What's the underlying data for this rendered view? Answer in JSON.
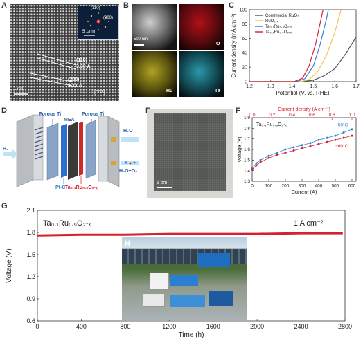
{
  "panels": {
    "A": {
      "letter": "A",
      "fft_labels": [
        "(110)",
        "(200)"
      ],
      "fft_scale": "5 1/nm",
      "d110_plane": "(110)",
      "d110_value": "3.30 Å",
      "d200_plane": "(200)",
      "d200_value": "2.32 Å",
      "scale_bar": "1 nm",
      "zone_axis": "[001]"
    },
    "B": {
      "letter": "B",
      "scale_bar": "500 nm",
      "element_labels": [
        "O",
        "Ru",
        "Ta"
      ],
      "colors": {
        "haadf": "#8a8a8a",
        "O": "#c8141c",
        "Ru": "#d8c92a",
        "Ta": "#38b7c9"
      }
    },
    "C": {
      "letter": "C"
    },
    "D": {
      "letter": "D",
      "labels": {
        "porous_ti_left": "Porous Ti",
        "porous_ti_right": "Porous Ti",
        "mea": "MEA",
        "h2": "H₂",
        "h2o_in": "H₂O",
        "h2o_out": "H₂O+O₂",
        "ptc": "Pt-C",
        "catalyst": "Ta₀.₁Ru₀.₉O₂-ₓ"
      }
    },
    "E": {
      "letter": "E",
      "scale_bar": "5 cm"
    },
    "F": {
      "letter": "F"
    },
    "G": {
      "letter": "G",
      "inset_letter": "H"
    }
  },
  "chart_data": [
    {
      "id": "C",
      "type": "line",
      "xlabel": "Potential (V, vs. RHE)",
      "ylabel": "Current density (mA cm⁻²)",
      "xlim": [
        1.2,
        1.7
      ],
      "ylim": [
        0,
        100
      ],
      "xticks": [
        1.2,
        1.3,
        1.4,
        1.5,
        1.6,
        1.7
      ],
      "yticks": [
        0,
        20,
        40,
        60,
        80,
        100
      ],
      "legend_position": "top-left",
      "series": [
        {
          "name": "Commercial RuO₂",
          "color": "#555555",
          "points": [
            [
              1.2,
              0
            ],
            [
              1.45,
              0
            ],
            [
              1.5,
              2
            ],
            [
              1.55,
              8
            ],
            [
              1.6,
              18
            ],
            [
              1.65,
              38
            ],
            [
              1.7,
              62
            ]
          ]
        },
        {
          "name": "RuO₂-ₓ",
          "color": "#f0c548",
          "points": [
            [
              1.2,
              0
            ],
            [
              1.44,
              0
            ],
            [
              1.48,
              3
            ],
            [
              1.52,
              14
            ],
            [
              1.56,
              36
            ],
            [
              1.6,
              68
            ],
            [
              1.62,
              90
            ],
            [
              1.63,
              100
            ]
          ]
        },
        {
          "name": "Ta₀.₂Ru₀.₈O₂-ₓ",
          "color": "#2b7fd6",
          "points": [
            [
              1.2,
              0
            ],
            [
              1.42,
              0
            ],
            [
              1.46,
              4
            ],
            [
              1.5,
              22
            ],
            [
              1.53,
              50
            ],
            [
              1.56,
              86
            ],
            [
              1.57,
              100
            ]
          ]
        },
        {
          "name": "Ta₀.₁Ru₀.₉O₂-ₓ",
          "color": "#d6202a",
          "points": [
            [
              1.2,
              0
            ],
            [
              1.41,
              0
            ],
            [
              1.45,
              5
            ],
            [
              1.48,
              22
            ],
            [
              1.51,
              52
            ],
            [
              1.535,
              86
            ],
            [
              1.545,
              100
            ]
          ]
        }
      ]
    },
    {
      "id": "F",
      "type": "scatter",
      "title": "Ta₀.₁Ru₀.₉O₂-ₓ",
      "xlabel": "Current (A)",
      "ylabel": "Voltage (V)",
      "x2label": "Current density (A cm⁻²)",
      "xlim": [
        0,
        625
      ],
      "ylim": [
        1.3,
        1.9
      ],
      "xticks": [
        0,
        100,
        200,
        300,
        400,
        500,
        600
      ],
      "yticks": [
        1.3,
        1.4,
        1.5,
        1.6,
        1.7,
        1.8,
        1.9
      ],
      "x2ticks": [
        0.0,
        0.2,
        0.4,
        0.6,
        0.8,
        1.0
      ],
      "series": [
        {
          "name": "~50°C",
          "color": "#2b7fd6",
          "points": [
            [
              0,
              1.42
            ],
            [
              25,
              1.47
            ],
            [
              50,
              1.5
            ],
            [
              100,
              1.54
            ],
            [
              150,
              1.57
            ],
            [
              200,
              1.6
            ],
            [
              250,
              1.62
            ],
            [
              300,
              1.64
            ],
            [
              350,
              1.66
            ],
            [
              400,
              1.69
            ],
            [
              450,
              1.71
            ],
            [
              500,
              1.73
            ],
            [
              550,
              1.76
            ],
            [
              600,
              1.79
            ]
          ]
        },
        {
          "name": "~60°C",
          "color": "#d6202a",
          "points": [
            [
              0,
              1.41
            ],
            [
              25,
              1.45
            ],
            [
              50,
              1.48
            ],
            [
              100,
              1.52
            ],
            [
              150,
              1.55
            ],
            [
              200,
              1.57
            ],
            [
              250,
              1.59
            ],
            [
              300,
              1.61
            ],
            [
              350,
              1.63
            ],
            [
              400,
              1.65
            ],
            [
              450,
              1.67
            ],
            [
              500,
              1.69
            ],
            [
              550,
              1.71
            ],
            [
              600,
              1.73
            ]
          ]
        }
      ]
    },
    {
      "id": "G",
      "type": "line",
      "title": "Ta₀.₁Ru₀.₉O₂-ₓ",
      "annotation": "1 A cm⁻²",
      "xlabel": "Time (h)",
      "ylabel": "Voltage (V)",
      "xlim": [
        0,
        2800
      ],
      "ylim": [
        0.6,
        2.1
      ],
      "xticks": [
        0,
        400,
        800,
        1200,
        1600,
        2000,
        2400,
        2800
      ],
      "yticks": [
        0.6,
        0.9,
        1.2,
        1.5,
        1.8,
        2.1
      ],
      "series": [
        {
          "name": "",
          "color": "#d6202a",
          "points": [
            [
              0,
              1.76
            ],
            [
              400,
              1.77
            ],
            [
              800,
              1.77
            ],
            [
              1200,
              1.78
            ],
            [
              1600,
              1.78
            ],
            [
              2000,
              1.78
            ],
            [
              2400,
              1.79
            ],
            [
              2780,
              1.79
            ]
          ]
        }
      ]
    }
  ]
}
